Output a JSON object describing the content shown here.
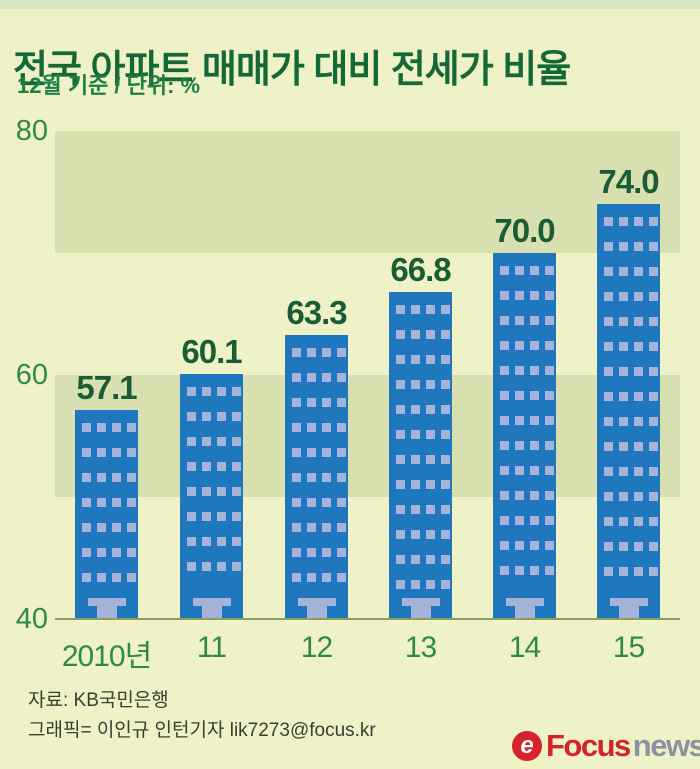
{
  "header": {
    "title": "전국 아파트 매매가 대비 전세가 비율",
    "subtitle": "12월 기준 / 단위: %"
  },
  "chart_data": {
    "type": "bar",
    "title": "전국 아파트 매매가 대비 전세가 비율",
    "subtitle": "12월 기준 / 단위: %",
    "categories": [
      "2010년",
      "11",
      "12",
      "13",
      "14",
      "15"
    ],
    "values": [
      57.1,
      60.1,
      63.3,
      66.8,
      70.0,
      74.0
    ],
    "value_labels": [
      "57.1",
      "60.1",
      "63.3",
      "66.8",
      "70.0",
      "74.0"
    ],
    "unit": "%",
    "xlabel": "",
    "ylabel": "",
    "ylim": [
      40,
      80
    ],
    "yticks": [
      80,
      60,
      40
    ],
    "bands": [
      [
        70,
        80
      ],
      [
        50,
        60
      ]
    ],
    "grid": false,
    "legend": "none",
    "bar_style": "building-with-windows-and-door",
    "colors": {
      "background": "#eef2c6",
      "band": "#d9e0af",
      "bar": "#1f78bd",
      "window": "#a6b3d8",
      "value_label": "#1a5c35",
      "tick_label": "#2f8a49",
      "axis_line": "#8d9d60",
      "title": "#156939"
    }
  },
  "footer": {
    "source": "자료: KB국민은행",
    "credit": "그래픽= 이인규 인턴기자 lik7273@focus.kr"
  },
  "logo": {
    "icon": "e-swirl-icon",
    "brand_red": "Focus",
    "brand_gray": "news"
  }
}
